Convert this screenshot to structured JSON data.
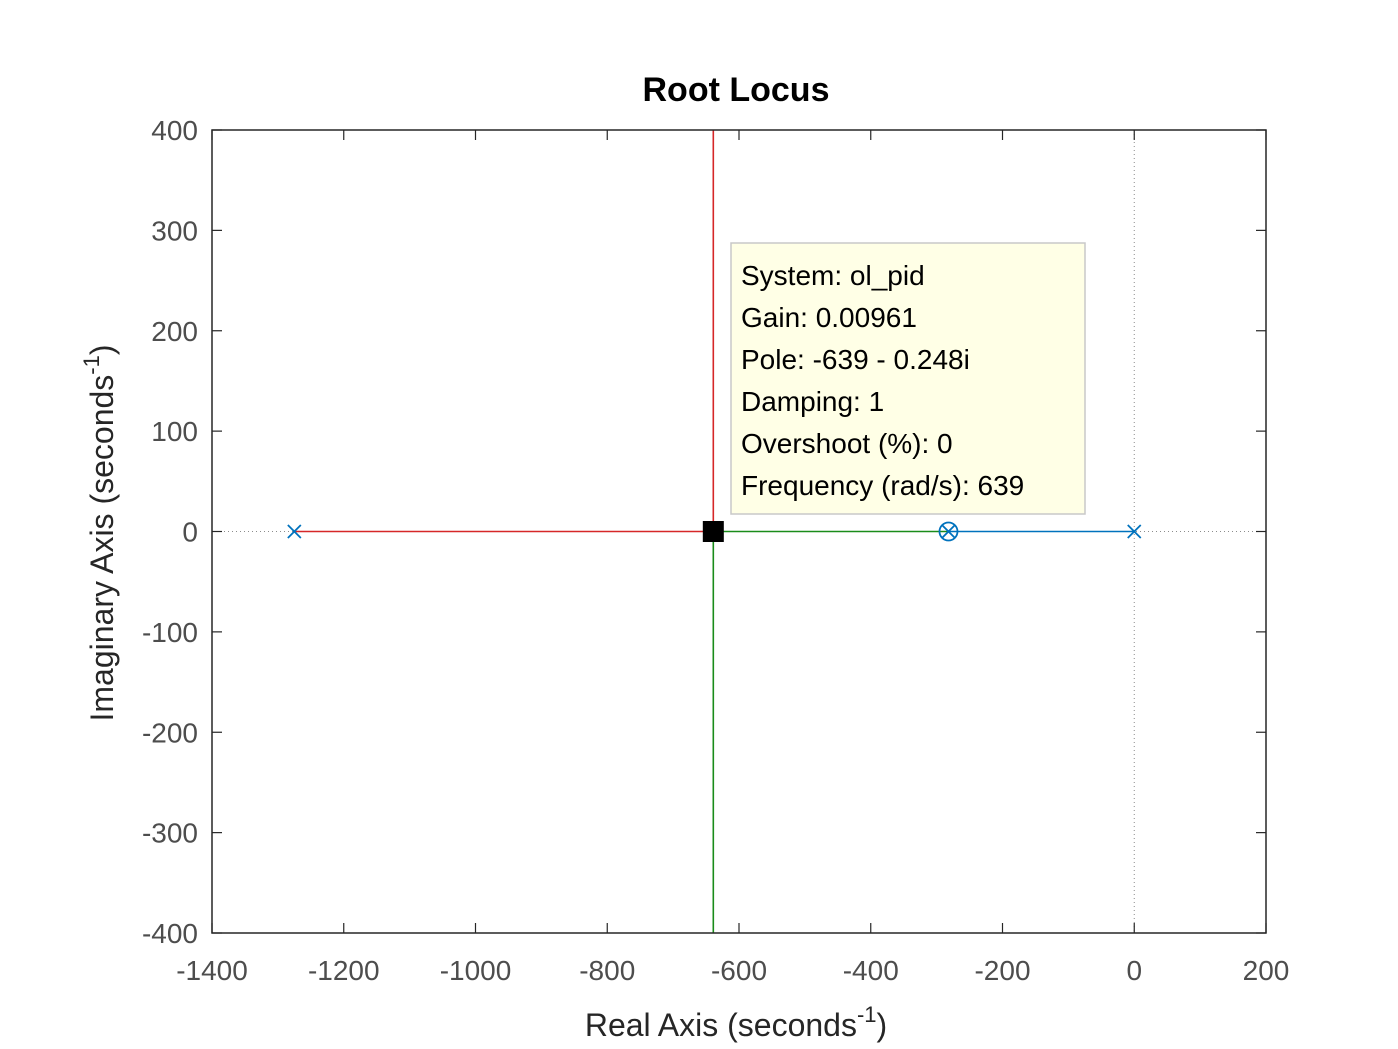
{
  "chart_data": {
    "type": "scatter",
    "title": "Root Locus",
    "xlabel": {
      "text": "Real Axis (seconds",
      "sup": "-1",
      "close": ")"
    },
    "ylabel": {
      "text": "Imaginary Axis (seconds",
      "sup": "-1",
      "close": ")"
    },
    "xlim": [
      -1400,
      200
    ],
    "ylim": [
      -400,
      400
    ],
    "xticks": [
      -1400,
      -1200,
      -1000,
      -800,
      -600,
      -400,
      -200,
      0,
      200
    ],
    "yticks": [
      -400,
      -300,
      -200,
      -100,
      0,
      100,
      200,
      300,
      400
    ],
    "grid": false,
    "reference_lines": {
      "real_axis_y": 0,
      "imag_axis_x": 0
    },
    "branches": [
      {
        "color": "#d62728",
        "points": [
          [
            -1275,
            0
          ],
          [
            -639,
            0
          ]
        ]
      },
      {
        "color": "#d62728",
        "points": [
          [
            -639,
            0
          ],
          [
            -639,
            400
          ]
        ]
      },
      {
        "color": "#0072bd",
        "points": [
          [
            -282,
            0
          ],
          [
            0,
            0
          ]
        ]
      },
      {
        "color": "#1a8c1a",
        "points": [
          [
            -639,
            0
          ],
          [
            -282,
            0
          ]
        ]
      },
      {
        "color": "#1a8c1a",
        "points": [
          [
            -639,
            0
          ],
          [
            -639,
            -400
          ]
        ]
      }
    ],
    "poles": [
      [
        -1275,
        0
      ],
      [
        0,
        0
      ],
      [
        -282,
        0
      ]
    ],
    "zeros": [
      [
        -282,
        0
      ]
    ],
    "selected_point": [
      -639,
      0
    ],
    "marker_color": "#0072bd"
  },
  "datatip": {
    "lines": [
      "System: ol_pid",
      "Gain: 0.00961",
      "Pole: -639 - 0.248i",
      "Damping: 1",
      "Overshoot (%): 0",
      "Frequency (rad/s): 639"
    ]
  }
}
